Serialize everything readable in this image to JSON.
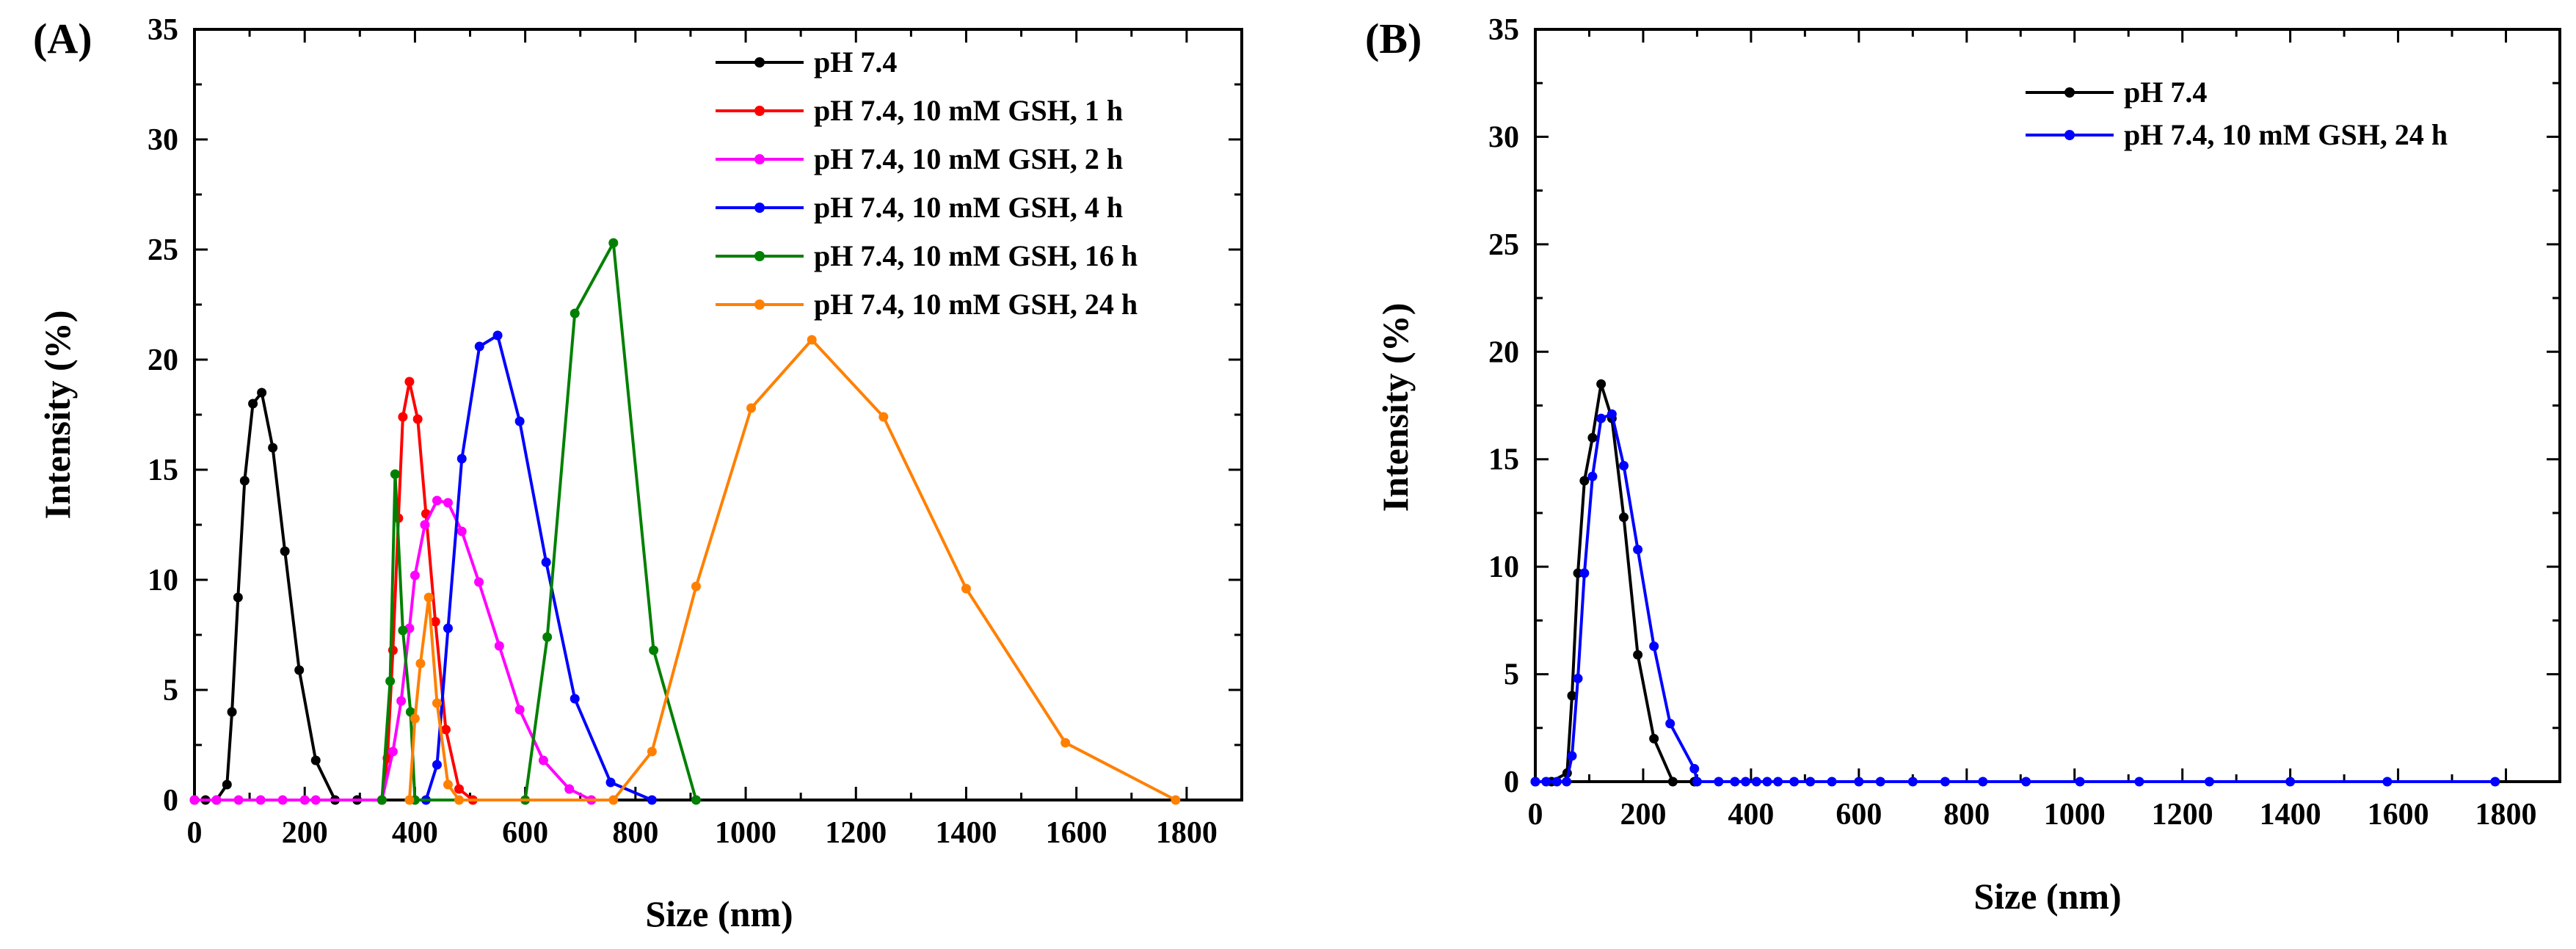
{
  "chart_data": [
    {
      "type": "line",
      "panel_label": "(A)",
      "xlabel": "Size (nm)",
      "ylabel": "Intensity (%)",
      "xlim": [
        0,
        1900
      ],
      "ylim": [
        0,
        35
      ],
      "xticks": [
        0,
        200,
        400,
        600,
        800,
        1000,
        1200,
        1400,
        1600,
        1800
      ],
      "yticks": [
        0,
        5,
        10,
        15,
        20,
        25,
        30,
        35
      ],
      "legend_position": "top-right",
      "series": [
        {
          "name": "pH 7.4",
          "color": "#000000",
          "points": [
            [
              0,
              0
            ],
            [
              20,
              0
            ],
            [
              40,
              0
            ],
            [
              59,
              0.7
            ],
            [
              68,
              4
            ],
            [
              79,
              9.2
            ],
            [
              91,
              14.5
            ],
            [
              106,
              18
            ],
            [
              122,
              18.5
            ],
            [
              142,
              16
            ],
            [
              164,
              11.3
            ],
            [
              190,
              5.9
            ],
            [
              220,
              1.8
            ],
            [
              255,
              0
            ],
            [
              295,
              0
            ],
            [
              340,
              0
            ]
          ]
        },
        {
          "name": "pH 7.4, 10 mM GSH, 1 h",
          "color": "#ff0000",
          "points": [
            [
              340,
              0
            ],
            [
              350,
              1.9
            ],
            [
              360,
              6.8
            ],
            [
              370,
              12.8
            ],
            [
              378,
              17.4
            ],
            [
              390,
              19
            ],
            [
              405,
              17.3
            ],
            [
              420,
              13
            ],
            [
              437,
              8.1
            ],
            [
              456,
              3.2
            ],
            [
              480,
              0.5
            ],
            [
              505,
              0
            ]
          ]
        },
        {
          "name": "pH 7.4, 10 mM GSH, 2 h",
          "color": "#ff00ff",
          "points": [
            [
              0,
              0
            ],
            [
              40,
              0
            ],
            [
              80,
              0
            ],
            [
              120,
              0
            ],
            [
              160,
              0
            ],
            [
              200,
              0
            ],
            [
              220,
              0
            ],
            [
              340,
              0
            ],
            [
              360,
              2.2
            ],
            [
              375,
              4.5
            ],
            [
              390,
              7.8
            ],
            [
              400,
              10.2
            ],
            [
              418,
              12.5
            ],
            [
              440,
              13.6
            ],
            [
              460,
              13.5
            ],
            [
              485,
              12.2
            ],
            [
              516,
              9.9
            ],
            [
              553,
              7
            ],
            [
              590,
              4.1
            ],
            [
              633,
              1.8
            ],
            [
              680,
              0.5
            ],
            [
              720,
              0
            ]
          ]
        },
        {
          "name": "pH 7.4, 10 mM GSH, 4 h",
          "color": "#0000ff",
          "points": [
            [
              420,
              0
            ],
            [
              440,
              1.6
            ],
            [
              460,
              7.8
            ],
            [
              485,
              15.5
            ],
            [
              517,
              20.6
            ],
            [
              550,
              21.1
            ],
            [
              590,
              17.2
            ],
            [
              638,
              10.8
            ],
            [
              690,
              4.6
            ],
            [
              755,
              0.8
            ],
            [
              830,
              0
            ]
          ]
        },
        {
          "name": "pH 7.4, 10 mM GSH, 16 h",
          "color": "#008000",
          "points": [
            [
              340,
              0
            ],
            [
              355,
              5.4
            ],
            [
              364,
              14.8
            ],
            [
              378,
              7.7
            ],
            [
              392,
              4
            ],
            [
              400,
              0
            ],
            [
              600,
              0
            ],
            [
              640,
              7.4
            ],
            [
              690,
              22.1
            ],
            [
              760,
              25.3
            ],
            [
              833,
              6.8
            ],
            [
              910,
              0
            ]
          ]
        },
        {
          "name": "pH 7.4, 10 mM GSH, 24 h",
          "color": "#ff8000",
          "points": [
            [
              390,
              0
            ],
            [
              400,
              3.7
            ],
            [
              410,
              6.2
            ],
            [
              425,
              9.2
            ],
            [
              440,
              4.4
            ],
            [
              460,
              0.7
            ],
            [
              480,
              0
            ],
            [
              760,
              0
            ],
            [
              830,
              2.2
            ],
            [
              910,
              9.7
            ],
            [
              1010,
              17.8
            ],
            [
              1120,
              20.9
            ],
            [
              1250,
              17.4
            ],
            [
              1400,
              9.6
            ],
            [
              1580,
              2.6
            ],
            [
              1780,
              0
            ]
          ]
        }
      ]
    },
    {
      "type": "line",
      "panel_label": "(B)",
      "xlabel": "Size (nm)",
      "ylabel": "Intensity (%)",
      "xlim": [
        0,
        1900
      ],
      "ylim": [
        0,
        35
      ],
      "xticks": [
        0,
        200,
        400,
        600,
        800,
        1000,
        1200,
        1400,
        1600,
        1800
      ],
      "yticks": [
        0,
        5,
        10,
        15,
        20,
        25,
        30,
        35
      ],
      "legend_position": "top-right",
      "series": [
        {
          "name": "pH 7.4",
          "color": "#000000",
          "points": [
            [
              0,
              0
            ],
            [
              30,
              0
            ],
            [
              59,
              0.4
            ],
            [
              68,
              4
            ],
            [
              79,
              9.7
            ],
            [
              91,
              14
            ],
            [
              106,
              16
            ],
            [
              122,
              18.5
            ],
            [
              142,
              16.9
            ],
            [
              164,
              12.3
            ],
            [
              190,
              5.9
            ],
            [
              220,
              2
            ],
            [
              255,
              0
            ],
            [
              295,
              0
            ]
          ]
        },
        {
          "name": "pH 7.4, 10 mM GSH, 24 h",
          "color": "#0000ff",
          "points": [
            [
              0,
              0
            ],
            [
              20,
              0
            ],
            [
              40,
              0
            ],
            [
              58,
              0
            ],
            [
              68,
              1.2
            ],
            [
              79,
              4.8
            ],
            [
              91,
              9.7
            ],
            [
              106,
              14.2
            ],
            [
              122,
              16.9
            ],
            [
              142,
              17.1
            ],
            [
              164,
              14.7
            ],
            [
              190,
              10.8
            ],
            [
              220,
              6.3
            ],
            [
              250,
              2.7
            ],
            [
              295,
              0.6
            ],
            [
              300,
              0
            ],
            [
              340,
              0
            ],
            [
              370,
              0
            ],
            [
              390,
              0
            ],
            [
              410,
              0
            ],
            [
              430,
              0
            ],
            [
              450,
              0
            ],
            [
              480,
              0
            ],
            [
              510,
              0
            ],
            [
              550,
              0
            ],
            [
              600,
              0
            ],
            [
              640,
              0
            ],
            [
              700,
              0
            ],
            [
              760,
              0
            ],
            [
              830,
              0
            ],
            [
              910,
              0
            ],
            [
              1010,
              0
            ],
            [
              1120,
              0
            ],
            [
              1250,
              0
            ],
            [
              1400,
              0
            ],
            [
              1580,
              0
            ],
            [
              1780,
              0
            ]
          ]
        }
      ]
    }
  ]
}
